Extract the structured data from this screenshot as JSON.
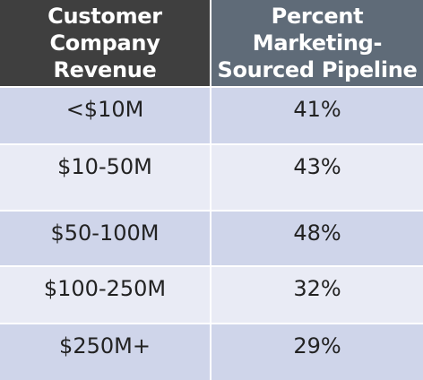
{
  "table": {
    "headers": {
      "company_revenue": "Customer Company Revenue",
      "marketing_sourced_pipeline": "Percent Marketing-Sourced Pipeline"
    },
    "rows": [
      {
        "revenue": "<$10M",
        "percent": "41%"
      },
      {
        "revenue": "$10-50M",
        "percent": "43%"
      },
      {
        "revenue": "$50-100M",
        "percent": "48%"
      },
      {
        "revenue": "$100-250M",
        "percent": "32%"
      },
      {
        "revenue": "$250M+",
        "percent": "29%"
      }
    ]
  },
  "colors": {
    "header_left_bg": "#3f3f3f",
    "header_right_bg": "#5f6b78",
    "row_band_dark": "#cfd5ea",
    "row_band_light": "#e9ebf5"
  }
}
